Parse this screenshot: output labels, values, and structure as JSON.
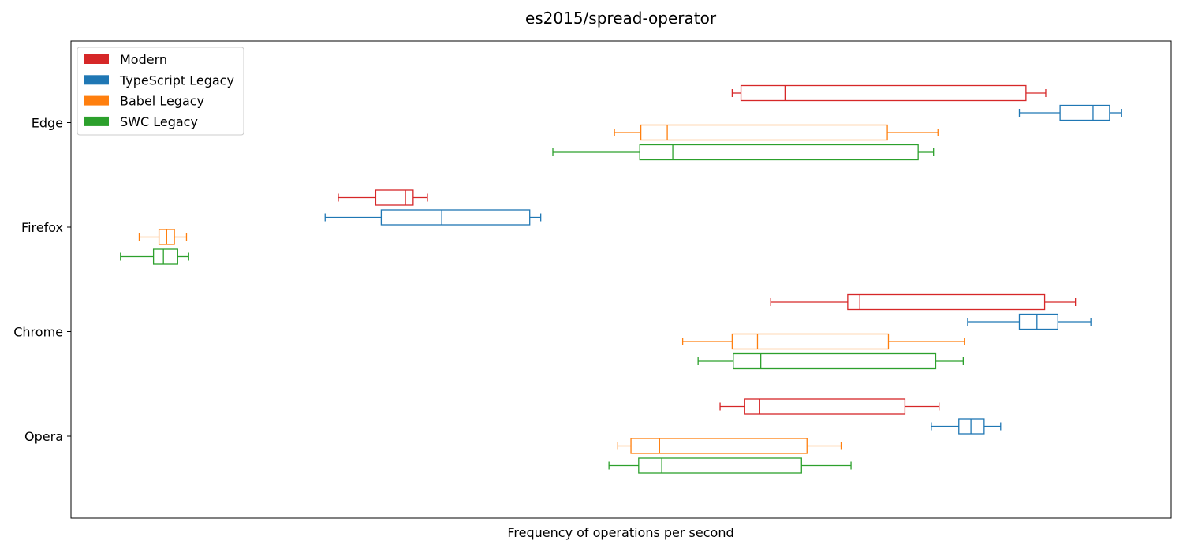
{
  "chart_data": {
    "type": "boxplot-horizontal",
    "title": "es2015/spread-operator",
    "xlabel": "Frequency of operations per second",
    "ylabel": "",
    "xlim": [
      0,
      1000
    ],
    "x_ticks_shown": false,
    "grid": false,
    "legend_position": "upper-left",
    "categories": [
      "Edge",
      "Firefox",
      "Chrome",
      "Opera"
    ],
    "series": [
      {
        "name": "Modern",
        "color": "#d62728",
        "boxes": [
          {
            "category": "Edge",
            "whislo": 601,
            "q1": 609,
            "med": 649,
            "q3": 868,
            "whishi": 886
          },
          {
            "category": "Firefox",
            "whislo": 243,
            "q1": 277,
            "med": 304,
            "q3": 311,
            "whishi": 324
          },
          {
            "category": "Chrome",
            "whislo": 636,
            "q1": 706,
            "med": 717,
            "q3": 885,
            "whishi": 913
          },
          {
            "category": "Opera",
            "whislo": 590,
            "q1": 612,
            "med": 626,
            "q3": 758,
            "whishi": 789
          }
        ]
      },
      {
        "name": "TypeScript Legacy",
        "color": "#1f77b4",
        "boxes": [
          {
            "category": "Edge",
            "whislo": 862,
            "q1": 899,
            "med": 929,
            "q3": 944,
            "whishi": 955
          },
          {
            "category": "Firefox",
            "whislo": 231,
            "q1": 282,
            "med": 337,
            "q3": 417,
            "whishi": 427
          },
          {
            "category": "Chrome",
            "whislo": 815,
            "q1": 862,
            "med": 878,
            "q3": 897,
            "whishi": 927
          },
          {
            "category": "Opera",
            "whislo": 782,
            "q1": 807,
            "med": 818,
            "q3": 830,
            "whishi": 845
          }
        ]
      },
      {
        "name": "Babel Legacy",
        "color": "#ff7f0e",
        "boxes": [
          {
            "category": "Edge",
            "whislo": 494,
            "q1": 518,
            "med": 542,
            "q3": 742,
            "whishi": 788
          },
          {
            "category": "Firefox",
            "whislo": 62,
            "q1": 80,
            "med": 87,
            "q3": 94,
            "whishi": 105
          },
          {
            "category": "Chrome",
            "whislo": 556,
            "q1": 601,
            "med": 624,
            "q3": 743,
            "whishi": 812
          },
          {
            "category": "Opera",
            "whislo": 497,
            "q1": 509,
            "med": 535,
            "q3": 669,
            "whishi": 700
          }
        ]
      },
      {
        "name": "SWC Legacy",
        "color": "#2ca02c",
        "boxes": [
          {
            "category": "Edge",
            "whislo": 438,
            "q1": 517,
            "med": 547,
            "q3": 770,
            "whishi": 784
          },
          {
            "category": "Firefox",
            "whislo": 45,
            "q1": 75,
            "med": 84,
            "q3": 97,
            "whishi": 107
          },
          {
            "category": "Chrome",
            "whislo": 570,
            "q1": 602,
            "med": 627,
            "q3": 786,
            "whishi": 811
          },
          {
            "category": "Opera",
            "whislo": 489,
            "q1": 516,
            "med": 537,
            "q3": 664,
            "whishi": 709
          }
        ]
      }
    ]
  }
}
